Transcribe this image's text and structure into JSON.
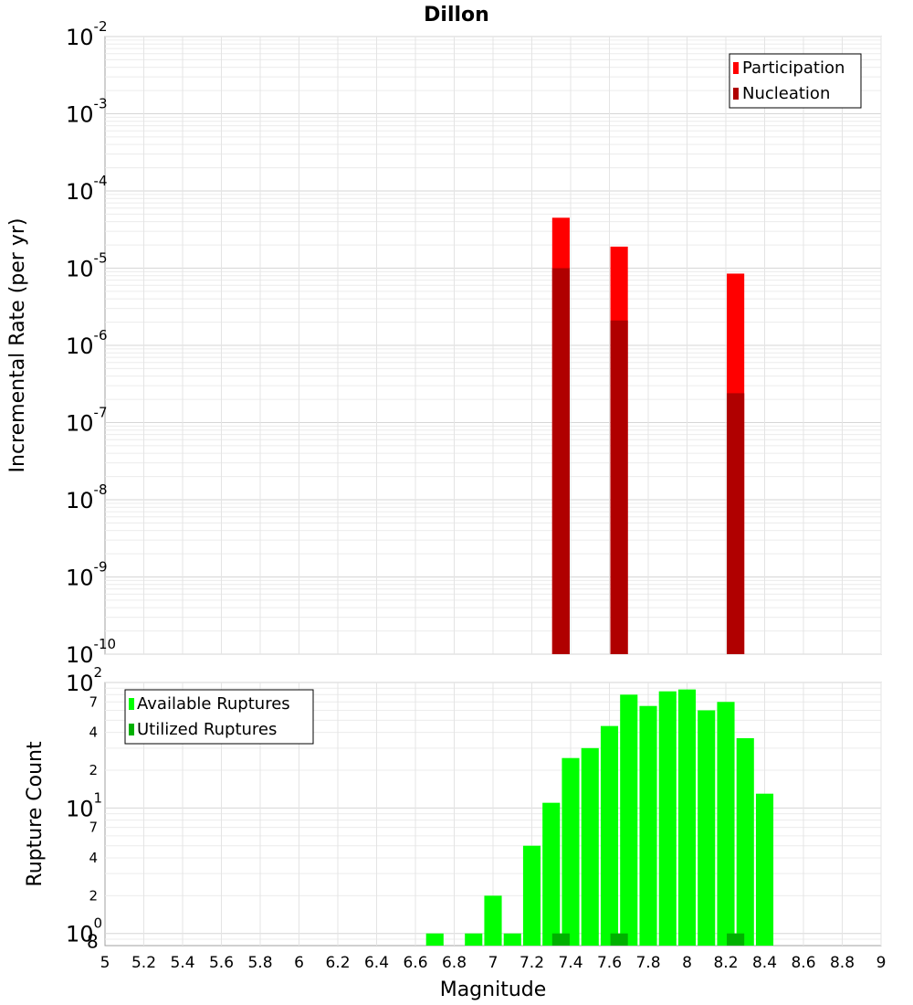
{
  "title": "Dillon",
  "xlabel": "Magnitude",
  "chart_data": [
    {
      "type": "bar",
      "ylabel": "Incremental Rate (per yr)",
      "yscale": "log",
      "xlim": [
        5,
        9
      ],
      "ylim": [
        1e-10,
        0.01
      ],
      "y_ticks": [
        {
          "base": "10",
          "exp": "-10"
        },
        {
          "base": "10",
          "exp": "-9"
        },
        {
          "base": "10",
          "exp": "-8"
        },
        {
          "base": "10",
          "exp": "-7"
        },
        {
          "base": "10",
          "exp": "-6"
        },
        {
          "base": "10",
          "exp": "-5"
        },
        {
          "base": "10",
          "exp": "-4"
        },
        {
          "base": "10",
          "exp": "-3"
        },
        {
          "base": "10",
          "exp": "-2"
        }
      ],
      "legend_position": "top-right",
      "bar_width": 0.09,
      "series": [
        {
          "name": "Participation",
          "color": "#ff0000",
          "x": [
            7.35,
            7.65,
            8.25
          ],
          "values": [
            4.5e-05,
            1.9e-05,
            8.5e-06
          ]
        },
        {
          "name": "Nucleation",
          "color": "#b00000",
          "x": [
            7.35,
            7.65,
            8.25
          ],
          "values": [
            1e-05,
            2.1e-06,
            2.4e-07
          ]
        }
      ]
    },
    {
      "type": "bar",
      "ylabel": "Rupture Count",
      "yscale": "log",
      "xlim": [
        5,
        9
      ],
      "ylim": [
        0.8,
        100
      ],
      "y_ticks": [
        {
          "base": "10",
          "exp": "0",
          "extra": "8"
        },
        {
          "base": "10",
          "exp": "1"
        },
        {
          "base": "10",
          "exp": "2"
        }
      ],
      "minor_ticks": [
        "2",
        "4",
        "7",
        "2",
        "4",
        "7",
        "2",
        "4",
        "7"
      ],
      "minor_tick_values": [
        2,
        4,
        7,
        20,
        40,
        70,
        200,
        400,
        700
      ],
      "legend_position": "top-left",
      "bar_width": 0.09,
      "series": [
        {
          "name": "Available Ruptures",
          "color": "#00ff00",
          "x": [
            6.7,
            6.9,
            7.0,
            7.1,
            7.2,
            7.3,
            7.4,
            7.5,
            7.6,
            7.7,
            7.8,
            7.9,
            8.0,
            8.1,
            8.2,
            8.3,
            8.4
          ],
          "values": [
            1,
            1,
            2,
            1,
            5,
            11,
            25,
            30,
            45,
            80,
            65,
            85,
            88,
            60,
            70,
            36,
            13
          ]
        },
        {
          "name": "Utilized Ruptures",
          "color": "#00b000",
          "x": [
            7.35,
            7.65,
            8.25
          ],
          "values": [
            1,
            1,
            1
          ]
        }
      ]
    }
  ],
  "x_ticks": [
    "5",
    "5.2",
    "5.4",
    "5.6",
    "5.8",
    "6",
    "6.2",
    "6.4",
    "6.6",
    "6.8",
    "7",
    "7.2",
    "7.4",
    "7.6",
    "7.8",
    "8",
    "8.2",
    "8.4",
    "8.6",
    "8.8",
    "9"
  ]
}
